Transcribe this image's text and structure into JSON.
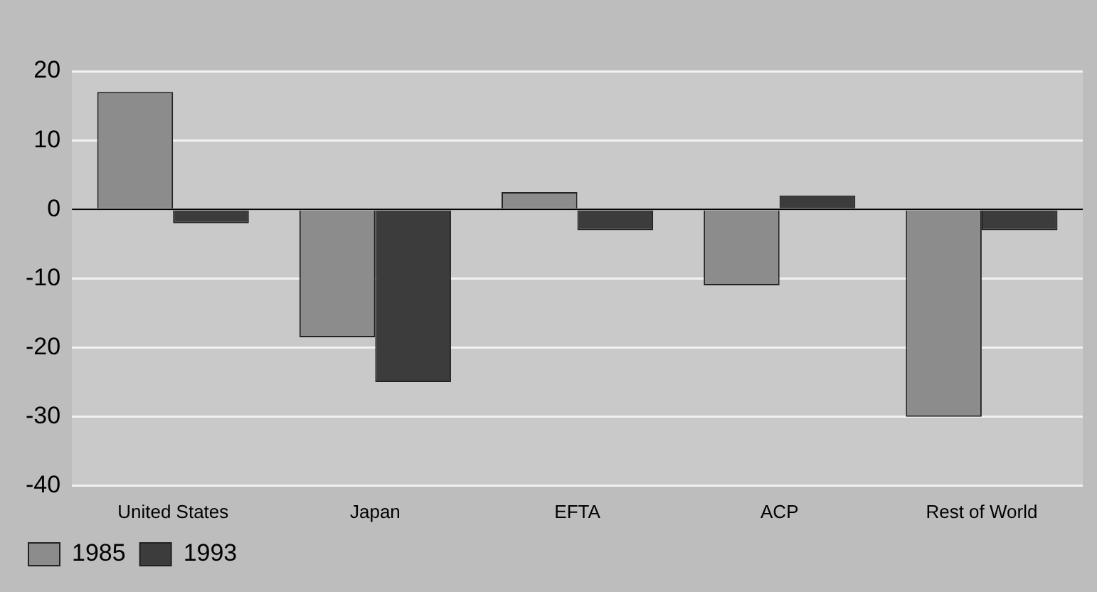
{
  "chart_data": {
    "type": "bar",
    "categories": [
      "United States",
      "Japan",
      "EFTA",
      "ACP",
      "Rest of World"
    ],
    "series": [
      {
        "name": "1985",
        "color": "#8c8c8c",
        "values": [
          17,
          -18.5,
          2.5,
          -11,
          -30
        ]
      },
      {
        "name": "1993",
        "color": "#3c3c3c",
        "values": [
          -2,
          -25,
          -3,
          2,
          -3
        ]
      }
    ],
    "ylim": [
      -40,
      20
    ],
    "yticks": [
      -40,
      -30,
      -20,
      -10,
      0,
      10,
      20
    ],
    "grid": "y",
    "legend": "bottom left"
  }
}
